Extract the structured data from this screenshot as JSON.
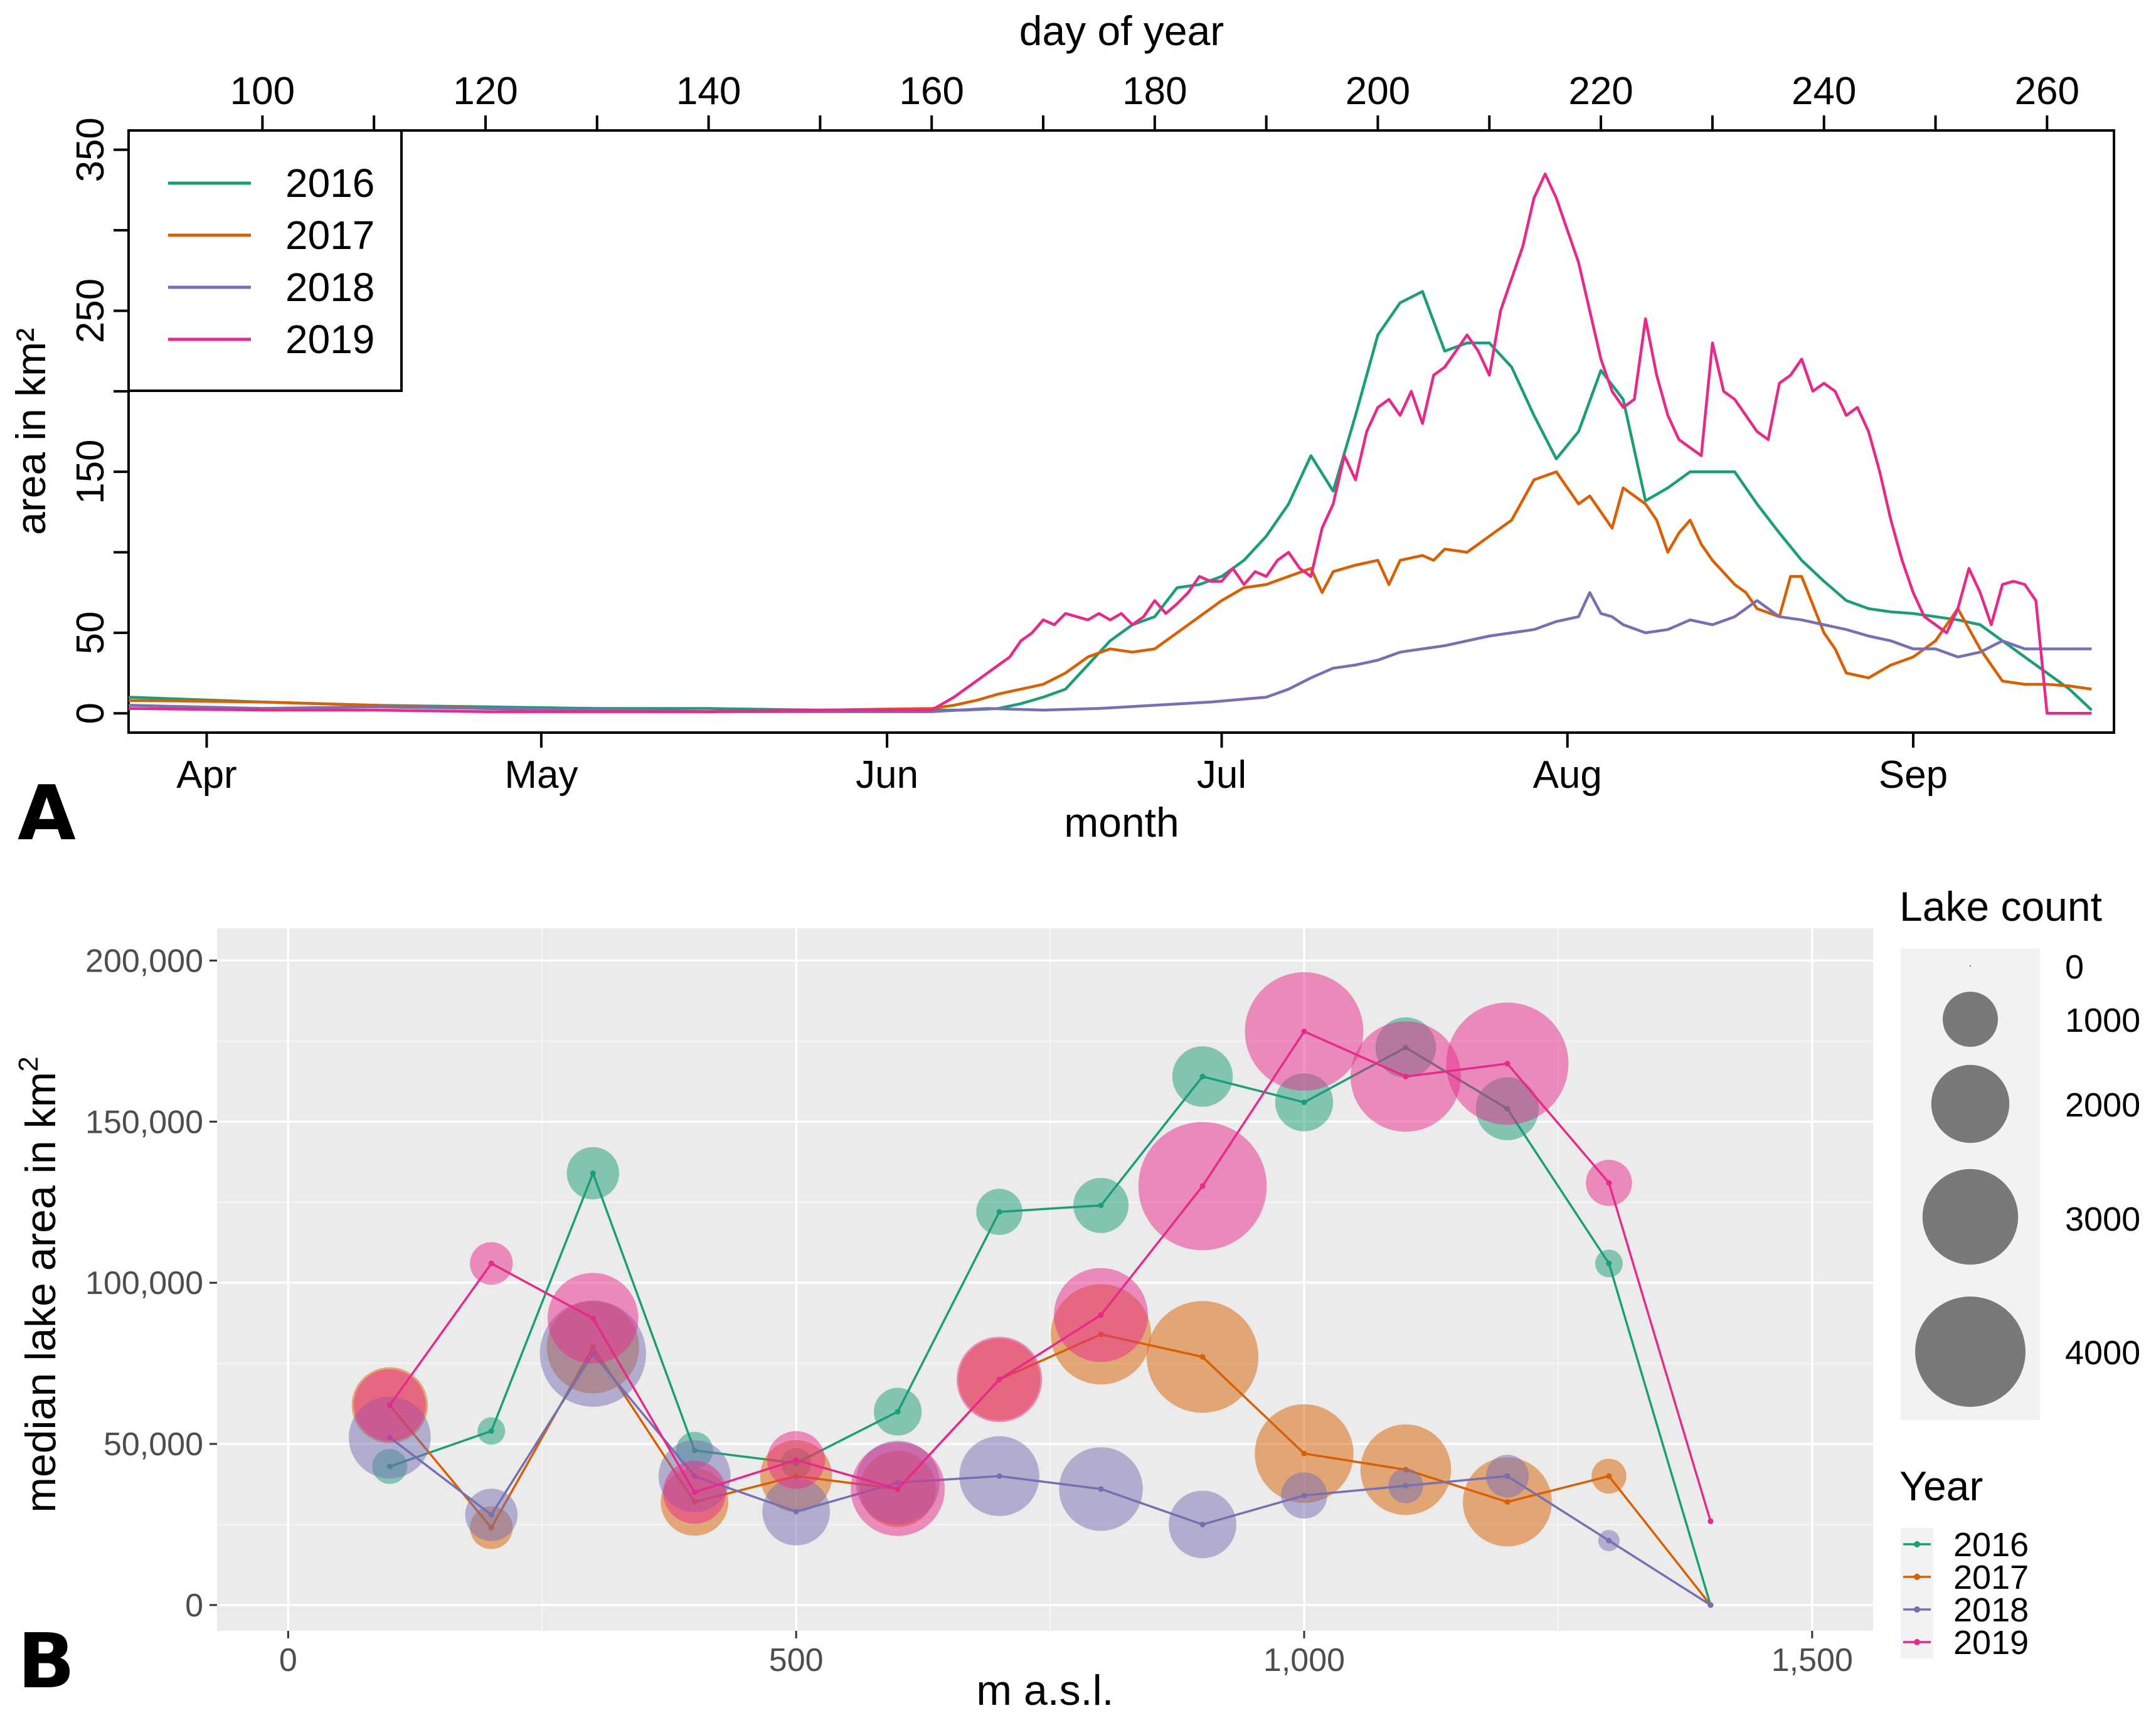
{
  "panel_labels": {
    "a": "A",
    "b": "B"
  },
  "colors": {
    "2016": "#1b9e77",
    "2017": "#d95f02",
    "2018": "#7570b3",
    "2019": "#e7298a"
  },
  "chart_data": [
    {
      "type": "line",
      "panel": "A",
      "xlabel": "month",
      "x2label": "day of year",
      "ylabel": "area in km²",
      "xlim": [
        88,
        266
      ],
      "ylim": [
        -12,
        362
      ],
      "yticks": [
        "0",
        "50",
        "150",
        "250",
        "350"
      ],
      "yticks_minor": [
        100,
        200,
        300
      ],
      "month_ticks": [
        {
          "label": "Apr",
          "doy": 95
        },
        {
          "label": "May",
          "doy": 125
        },
        {
          "label": "Jun",
          "doy": 156
        },
        {
          "label": "Jul",
          "doy": 186
        },
        {
          "label": "Aug",
          "doy": 217
        },
        {
          "label": "Sep",
          "doy": 248
        }
      ],
      "doy_ticks": [
        "100",
        "120",
        "140",
        "160",
        "180",
        "200",
        "220",
        "240",
        "260"
      ],
      "doy_minor_ticks": [
        110,
        130,
        150,
        170,
        190,
        210,
        230,
        250
      ],
      "legend": {
        "position": "top-left",
        "entries": [
          "2016",
          "2017",
          "2018",
          "2019"
        ]
      },
      "series": [
        {
          "name": "2016",
          "x": [
            88,
            100,
            110,
            120,
            130,
            140,
            150,
            160,
            163,
            166,
            168,
            170,
            172,
            174,
            176,
            178,
            180,
            182,
            184,
            186,
            188,
            190,
            192,
            194,
            196,
            198,
            200,
            202,
            204,
            206,
            208,
            210,
            212,
            214,
            216,
            218,
            220,
            222,
            224,
            226,
            228,
            230,
            232,
            234,
            236,
            238,
            240,
            242,
            244,
            246,
            248,
            250,
            252,
            254,
            256,
            258,
            260,
            262,
            264
          ],
          "values": [
            10,
            7,
            5,
            4,
            3,
            3,
            2,
            2,
            2,
            3,
            6,
            10,
            15,
            30,
            45,
            55,
            60,
            78,
            80,
            85,
            95,
            110,
            130,
            160,
            138,
            185,
            235,
            255,
            262,
            225,
            230,
            230,
            215,
            185,
            158,
            175,
            213,
            195,
            132,
            140,
            150,
            150,
            150,
            130,
            112,
            95,
            82,
            70,
            65,
            63,
            62,
            60,
            58,
            55,
            45,
            35,
            25,
            15,
            2
          ]
        },
        {
          "name": "2017",
          "x": [
            88,
            100,
            110,
            120,
            130,
            140,
            150,
            160,
            162,
            164,
            166,
            168,
            170,
            172,
            174,
            176,
            178,
            180,
            182,
            184,
            186,
            188,
            190,
            192,
            194,
            195,
            196,
            198,
            200,
            201,
            202,
            204,
            205,
            206,
            208,
            210,
            212,
            214,
            216,
            218,
            219,
            220,
            221,
            222,
            224,
            225,
            226,
            227,
            228,
            229,
            230,
            232,
            233,
            234,
            236,
            237,
            238,
            240,
            241,
            242,
            244,
            246,
            248,
            250,
            252,
            254,
            256,
            258,
            260,
            262,
            264
          ],
          "values": [
            8,
            7,
            5,
            3,
            2,
            1,
            2,
            3,
            5,
            8,
            12,
            15,
            18,
            25,
            35,
            40,
            38,
            40,
            50,
            60,
            70,
            78,
            80,
            85,
            90,
            75,
            88,
            92,
            95,
            80,
            95,
            98,
            95,
            102,
            100,
            110,
            120,
            145,
            150,
            130,
            135,
            125,
            115,
            140,
            130,
            120,
            100,
            112,
            120,
            105,
            95,
            80,
            75,
            65,
            60,
            85,
            85,
            50,
            40,
            25,
            22,
            30,
            35,
            45,
            65,
            40,
            20,
            18,
            18,
            17,
            15
          ]
        },
        {
          "name": "2018",
          "x": [
            88,
            100,
            110,
            120,
            130,
            140,
            150,
            160,
            165,
            170,
            175,
            180,
            185,
            190,
            192,
            194,
            196,
            198,
            200,
            202,
            204,
            206,
            208,
            210,
            212,
            214,
            216,
            218,
            219,
            220,
            221,
            222,
            224,
            226,
            228,
            230,
            232,
            234,
            236,
            238,
            240,
            242,
            244,
            246,
            248,
            250,
            252,
            254,
            256,
            258,
            260,
            262,
            264
          ],
          "values": [
            5,
            3,
            4,
            3,
            2,
            1,
            1,
            1,
            3,
            2,
            3,
            5,
            7,
            10,
            15,
            22,
            28,
            30,
            33,
            38,
            40,
            42,
            45,
            48,
            50,
            52,
            57,
            60,
            75,
            62,
            60,
            55,
            50,
            52,
            58,
            55,
            60,
            70,
            60,
            58,
            55,
            52,
            48,
            45,
            40,
            40,
            35,
            38,
            45,
            40,
            40,
            40,
            40
          ]
        },
        {
          "name": "2019",
          "x": [
            88,
            100,
            110,
            120,
            130,
            140,
            150,
            160,
            162,
            164,
            166,
            167,
            168,
            169,
            170,
            171,
            172,
            173,
            174,
            175,
            176,
            177,
            178,
            179,
            180,
            181,
            182,
            183,
            184,
            185,
            186,
            187,
            188,
            189,
            190,
            191,
            192,
            193,
            194,
            195,
            196,
            197,
            198,
            199,
            200,
            201,
            202,
            203,
            204,
            205,
            206,
            207,
            208,
            209,
            210,
            211,
            212,
            213,
            214,
            215,
            216,
            217,
            218,
            219,
            220,
            221,
            222,
            223,
            224,
            225,
            226,
            227,
            228,
            229,
            230,
            231,
            232,
            233,
            234,
            235,
            236,
            237,
            238,
            239,
            240,
            241,
            242,
            243,
            244,
            245,
            246,
            247,
            248,
            249,
            250,
            251,
            252,
            253,
            254,
            255,
            256,
            257,
            258,
            259,
            260,
            261,
            262,
            263,
            264
          ],
          "values": [
            3,
            2,
            2,
            1,
            1,
            1,
            2,
            2,
            10,
            20,
            30,
            35,
            45,
            50,
            58,
            55,
            62,
            60,
            58,
            62,
            58,
            62,
            55,
            60,
            70,
            62,
            68,
            75,
            85,
            82,
            82,
            90,
            80,
            88,
            85,
            95,
            100,
            90,
            85,
            115,
            130,
            160,
            145,
            175,
            190,
            195,
            185,
            200,
            180,
            210,
            215,
            225,
            235,
            225,
            210,
            250,
            270,
            290,
            320,
            335,
            320,
            300,
            280,
            250,
            220,
            200,
            190,
            195,
            245,
            210,
            185,
            170,
            165,
            160,
            230,
            200,
            195,
            185,
            175,
            170,
            205,
            210,
            220,
            200,
            205,
            200,
            185,
            190,
            175,
            150,
            120,
            95,
            75,
            60,
            55,
            50,
            65,
            90,
            75,
            55,
            80,
            82,
            80,
            70,
            0,
            0,
            0,
            0,
            0
          ]
        }
      ]
    },
    {
      "type": "scatter",
      "panel": "B",
      "xlabel": "m a.s.l.",
      "ylabel": "median lake area in km",
      "ylabel_superscript": "2",
      "xlim": [
        -70,
        1560
      ],
      "ylim": [
        -8000,
        210000
      ],
      "xticks": [
        {
          "label": "0",
          "value": 0
        },
        {
          "label": "500",
          "value": 500
        },
        {
          "label": "1,000",
          "value": 1000
        },
        {
          "label": "1,500",
          "value": 1500
        }
      ],
      "xticks_minor": [
        250,
        750,
        1250
      ],
      "yticks": [
        {
          "label": "0",
          "value": 0
        },
        {
          "label": "50,000",
          "value": 50000
        },
        {
          "label": "100,000",
          "value": 100000
        },
        {
          "label": "150,000",
          "value": 150000
        },
        {
          "label": "200,000",
          "value": 200000
        }
      ],
      "yticks_minor": [
        25000,
        75000,
        125000,
        175000
      ],
      "size_legend": {
        "title": "Lake count",
        "entries": [
          {
            "label": "0",
            "value": 0
          },
          {
            "label": "1000",
            "value": 1000
          },
          {
            "label": "2000",
            "value": 2000
          },
          {
            "label": "3000",
            "value": 3000
          },
          {
            "label": "4000",
            "value": 4000
          }
        ]
      },
      "color_legend": {
        "title": "Year",
        "entries": [
          "2016",
          "2017",
          "2018",
          "2019"
        ]
      },
      "series": [
        {
          "name": "2016",
          "x": [
            100,
            200,
            300,
            400,
            500,
            600,
            700,
            800,
            900,
            1000,
            1100,
            1200,
            1300,
            1400
          ],
          "y": [
            43000,
            54000,
            134000,
            48000,
            44000,
            60000,
            122000,
            124000,
            164000,
            156000,
            173000,
            154000,
            106000,
            0
          ],
          "count": [
            400,
            250,
            900,
            450,
            300,
            750,
            700,
            1000,
            1200,
            1100,
            1200,
            1300,
            250,
            0
          ]
        },
        {
          "name": "2017",
          "x": [
            100,
            200,
            300,
            400,
            500,
            600,
            700,
            800,
            900,
            1000,
            1100,
            1200,
            1300,
            1400
          ],
          "y": [
            62000,
            24000,
            80000,
            32000,
            40000,
            36000,
            70000,
            84000,
            77000,
            47000,
            42000,
            32000,
            40000,
            0
          ],
          "count": [
            1900,
            600,
            2800,
            1500,
            1700,
            1900,
            2200,
            3300,
            4100,
            3200,
            2700,
            2600,
            400,
            0
          ]
        },
        {
          "name": "2018",
          "x": [
            100,
            200,
            300,
            400,
            500,
            600,
            700,
            800,
            900,
            1000,
            1100,
            1200,
            1300,
            1400
          ],
          "y": [
            52000,
            28000,
            78000,
            40000,
            29000,
            38000,
            40000,
            36000,
            25000,
            34000,
            37000,
            40000,
            20000,
            0
          ],
          "count": [
            2200,
            900,
            3700,
            1700,
            1500,
            2300,
            2100,
            2300,
            1500,
            700,
            400,
            600,
            150,
            0
          ]
        },
        {
          "name": "2019",
          "x": [
            100,
            200,
            300,
            400,
            500,
            600,
            700,
            800,
            900,
            1000,
            1100,
            1200,
            1300,
            1400
          ],
          "y": [
            62000,
            106000,
            89000,
            35000,
            45000,
            36000,
            70000,
            90000,
            130000,
            178000,
            164000,
            168000,
            131000,
            26000
          ],
          "count": [
            1700,
            600,
            2700,
            1300,
            1100,
            2900,
            2400,
            2900,
            5400,
            4600,
            4000,
            4900,
            700,
            0
          ]
        }
      ]
    }
  ]
}
